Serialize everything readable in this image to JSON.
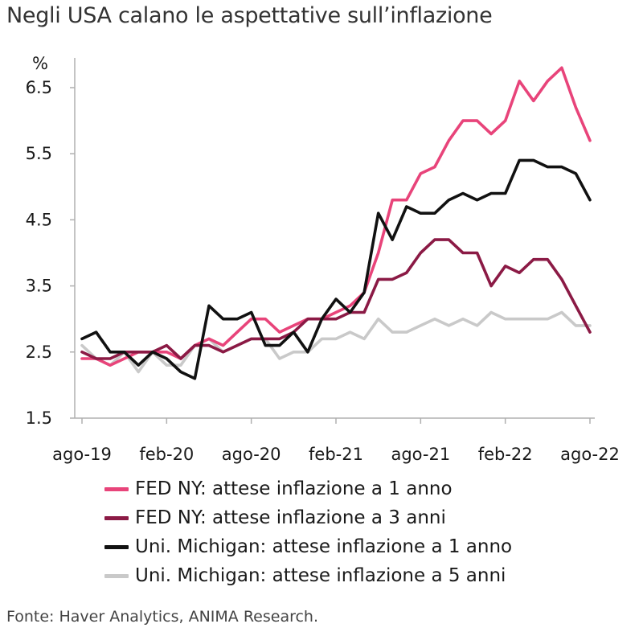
{
  "title": "Negli USA calano le aspettative sull’inflazione",
  "source": "Fonte: Haver Analytics, ANIMA Research.",
  "chart_data": {
    "type": "line",
    "ylabel": "%",
    "ylim": [
      1.5,
      6.95
    ],
    "yticks": [
      "6.5",
      "5.5",
      "4.5",
      "3.5",
      "2.5",
      "1.5"
    ],
    "xticks": [
      "ago-19",
      "feb-20",
      "ago-20",
      "feb-21",
      "ago-21",
      "feb-22",
      "ago-22"
    ],
    "x": [
      "2019-08",
      "2019-09",
      "2019-10",
      "2019-11",
      "2019-12",
      "2020-01",
      "2020-02",
      "2020-03",
      "2020-04",
      "2020-05",
      "2020-06",
      "2020-07",
      "2020-08",
      "2020-09",
      "2020-10",
      "2020-11",
      "2020-12",
      "2021-01",
      "2021-02",
      "2021-03",
      "2021-04",
      "2021-05",
      "2021-06",
      "2021-07",
      "2021-08",
      "2021-09",
      "2021-10",
      "2021-11",
      "2021-12",
      "2022-01",
      "2022-02",
      "2022-03",
      "2022-04",
      "2022-05",
      "2022-06",
      "2022-07",
      "2022-08"
    ],
    "grid": false,
    "legend_position": "bottom",
    "series": [
      {
        "name": "FED NY: attese inflazione a 1 anno",
        "color": "#e8447a",
        "values": [
          2.4,
          2.4,
          2.3,
          2.4,
          2.5,
          2.5,
          2.5,
          2.4,
          2.6,
          2.7,
          2.6,
          2.8,
          3.0,
          3.0,
          2.8,
          2.9,
          3.0,
          3.0,
          3.1,
          3.2,
          3.4,
          4.0,
          4.8,
          4.8,
          5.2,
          5.3,
          5.7,
          6.0,
          6.0,
          5.8,
          6.0,
          6.6,
          6.3,
          6.6,
          6.8,
          6.2,
          5.7
        ]
      },
      {
        "name": "FED NY: attese inflazione a 3 anni",
        "color": "#8b1a45",
        "values": [
          2.5,
          2.4,
          2.4,
          2.5,
          2.5,
          2.5,
          2.6,
          2.4,
          2.6,
          2.6,
          2.5,
          2.6,
          2.7,
          2.7,
          2.7,
          2.8,
          3.0,
          3.0,
          3.0,
          3.1,
          3.1,
          3.6,
          3.6,
          3.7,
          4.0,
          4.2,
          4.2,
          4.0,
          4.0,
          3.5,
          3.8,
          3.7,
          3.9,
          3.9,
          3.6,
          3.2,
          2.8
        ]
      },
      {
        "name": "Uni. Michigan: attese inflazione a 1 anno",
        "color": "#111111",
        "values": [
          2.7,
          2.8,
          2.5,
          2.5,
          2.3,
          2.5,
          2.4,
          2.2,
          2.1,
          3.2,
          3.0,
          3.0,
          3.1,
          2.6,
          2.6,
          2.8,
          2.5,
          3.0,
          3.3,
          3.1,
          3.4,
          4.6,
          4.2,
          4.7,
          4.6,
          4.6,
          4.8,
          4.9,
          4.8,
          4.9,
          4.9,
          5.4,
          5.4,
          5.3,
          5.3,
          5.2,
          4.8
        ]
      },
      {
        "name": "Uni. Michigan: attese inflazione a 5 anni",
        "color": "#c9c9c9",
        "values": [
          2.6,
          2.4,
          2.3,
          2.5,
          2.2,
          2.5,
          2.3,
          2.3,
          2.6,
          2.7,
          2.5,
          2.6,
          2.7,
          2.7,
          2.4,
          2.5,
          2.5,
          2.7,
          2.7,
          2.8,
          2.7,
          3.0,
          2.8,
          2.8,
          2.9,
          3.0,
          2.9,
          3.0,
          2.9,
          3.1,
          3.0,
          3.0,
          3.0,
          3.0,
          3.1,
          2.9,
          2.9
        ]
      }
    ]
  }
}
